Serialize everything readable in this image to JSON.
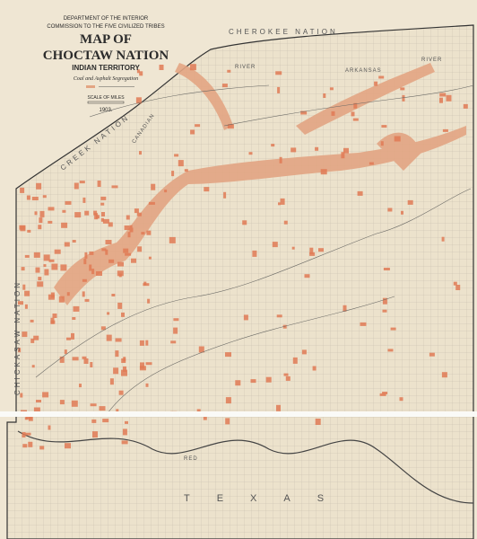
{
  "header": {
    "department": "DEPARTMENT OF THE INTERIOR",
    "commission": "COMMISSION TO THE FIVE CIVILIZED TRIBES",
    "title_line1": "MAP OF",
    "title_line2": "CHOCTAW NATION",
    "subtitle": "INDIAN TERRITORY",
    "segregation": "Coal and Asphalt Segregation",
    "scale": "SCALE OF MILES",
    "year": "1903."
  },
  "labels": {
    "cherokee": "CHEROKEE NATION",
    "creek": "CREEK NATION",
    "chickasaw": "CHICKASAW NATION",
    "texas": "TEXAS",
    "arkansas": "ARKANSAS",
    "river_top": "RIVER",
    "river_right": "RIVER",
    "canadian": "CANADIAN",
    "red": "RED"
  }
}
